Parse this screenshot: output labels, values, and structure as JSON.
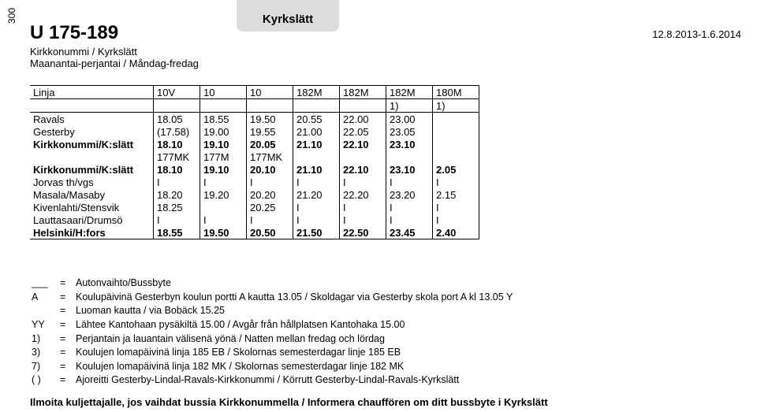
{
  "page_number": "300",
  "header_tab": "Kyrkslätt",
  "route_number": "U 175-189",
  "date_range": "12.8.2013-1.6.2014",
  "subtitle": "Kirkkonummi / Kyrkslätt",
  "days": "Maanantai-perjantai / Måndag-fredag",
  "line_header_label": "Linja",
  "line_headers": [
    "10V",
    "10",
    "10",
    "182M",
    "182M",
    "182M",
    "180M"
  ],
  "line_notes_row": [
    "",
    "",
    "",
    "",
    "",
    "1)",
    "1)"
  ],
  "rows": [
    {
      "label": "Ravals",
      "cells": [
        "18.05",
        "18.55",
        "19.50",
        "20.55",
        "22.00",
        "23.00",
        ""
      ],
      "bold": false
    },
    {
      "label": "Gesterby",
      "cells": [
        "(17.58)",
        "19.00",
        "19.55",
        "21.00",
        "22.05",
        "23.05",
        ""
      ],
      "bold": false
    },
    {
      "label": "Kirkkonummi/K:slätt",
      "cells": [
        "18.10",
        "19.10",
        "20.05",
        "21.10",
        "22.10",
        "23.10",
        ""
      ],
      "bold": true
    },
    {
      "label": "",
      "cells": [
        "177MK",
        "177M",
        "177MK",
        "",
        "",
        "",
        ""
      ],
      "bold": false,
      "note_row": true
    },
    {
      "label": "Kirkkonummi/K:slätt",
      "cells": [
        "18.10",
        "19.10",
        "20.10",
        "21.10",
        "22.10",
        "23.10",
        "2.05"
      ],
      "bold": true
    },
    {
      "label": "Jorvas th/vgs",
      "cells": [
        "I",
        "I",
        "I",
        "I",
        "I",
        "I",
        "I"
      ],
      "bold": false
    },
    {
      "label": "Masala/Masaby",
      "cells": [
        "18.20",
        "19.20",
        "20.20",
        "21.20",
        "22.20",
        "23.20",
        "2.15"
      ],
      "bold": false
    },
    {
      "label": "Kivenlahti/Stensvik",
      "cells": [
        "18.25",
        "",
        "20.25",
        "I",
        "I",
        "I",
        "I"
      ],
      "bold": false
    },
    {
      "label": "Lauttasaari/Drumsö",
      "cells": [
        "I",
        "I",
        "I",
        "I",
        "I",
        "I",
        "I"
      ],
      "bold": false
    },
    {
      "label": "Helsinki/H:fors",
      "cells": [
        "18.55",
        "19.50",
        "20.50",
        "21.50",
        "22.50",
        "23.45",
        "2.40"
      ],
      "bold": true
    }
  ],
  "legend": [
    {
      "key": "___",
      "text": "Autonvaihto/Bussbyte"
    },
    {
      "key": "A",
      "text": "Koulupäivinä Gesterbyn koulun portti A kautta 13.05 / Skoldagar via Gesterby skola port A kl 13.05 Y"
    },
    {
      "key": "",
      "text": "Luoman kautta / via Bobäck 15.25"
    },
    {
      "key": "YY",
      "text": "Lähtee Kantohaan pysäkiltä 15.00 / Avgår från hållplatsen Kantohaka 15.00"
    },
    {
      "key": "1)",
      "text": "Perjantain ja lauantain välisenä yönä / Natten mellan fredag och lördag"
    },
    {
      "key": "3)",
      "text": "Koulujen lomapäivinä linja 185 EB / Skolornas semesterdagar linje 185 EB"
    },
    {
      "key": "7)",
      "text": "Koulujen lomapäivinä linja 182 MK / Skolornas semesterdagar linje 182 MK"
    },
    {
      "key": "( )",
      "text": "Ajoreitti Gesterby-Lindal-Ravals-Kirkkonummi / Körrutt Gesterby-Lindal-Ravals-Kyrkslätt"
    }
  ],
  "footer": "Ilmoita kuljettajalle, jos vaihdat bussia Kirkkonummella / Informera chauffören om ditt bussbyte i Kyrkslätt"
}
